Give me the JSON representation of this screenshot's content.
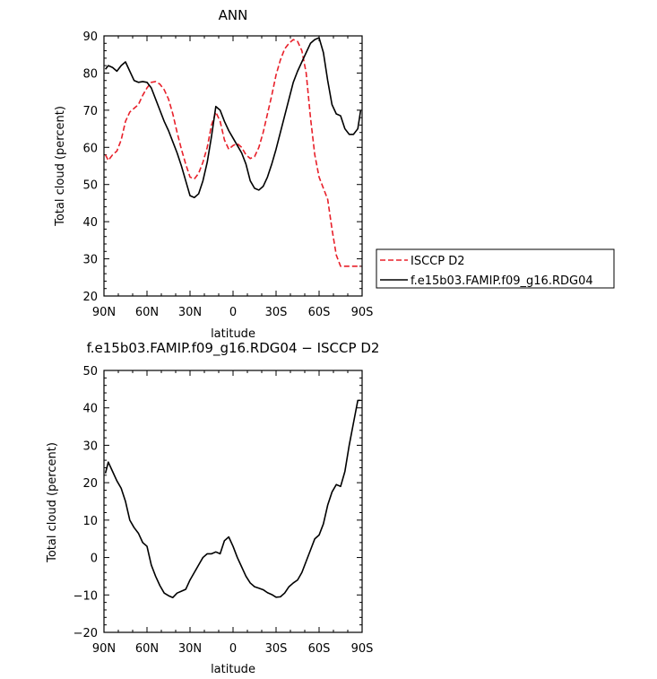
{
  "chart_data": [
    {
      "type": "line",
      "title": "ANN",
      "xlabel": "latitude",
      "ylabel": "Total cloud (percent)",
      "xlim": [
        90,
        -90
      ],
      "ylim": [
        20,
        90
      ],
      "x_tick_values": [
        90,
        60,
        30,
        0,
        -30,
        -60,
        -90
      ],
      "x_tick_labels": [
        "90N",
        "60N",
        "30N",
        "0",
        "30S",
        "60S",
        "90S"
      ],
      "y_tick_values": [
        20,
        30,
        40,
        50,
        60,
        70,
        80,
        90
      ],
      "y_tick_labels": [
        "20",
        "30",
        "40",
        "50",
        "60",
        "70",
        "80",
        "90"
      ],
      "legend_position": "right",
      "series": [
        {
          "name": "ISCCP D2",
          "color": "#e8202a",
          "dash": "dashed",
          "x": [
            89,
            87,
            84,
            81,
            78,
            75,
            72,
            69,
            66,
            63,
            60,
            57,
            54,
            51,
            48,
            45,
            42,
            39,
            36,
            33,
            30,
            27,
            24,
            21,
            18,
            15,
            12,
            9,
            6,
            3,
            0,
            -3,
            -6,
            -9,
            -12,
            -15,
            -18,
            -21,
            -24,
            -27,
            -30,
            -33,
            -36,
            -39,
            -42,
            -45,
            -48,
            -51,
            -54,
            -57,
            -60,
            -63,
            -66,
            -69,
            -72,
            -75,
            -78,
            -81,
            -84,
            -87,
            -89
          ],
          "y": [
            58,
            56.5,
            58,
            59,
            62,
            67,
            69.5,
            70.5,
            71.5,
            74,
            76,
            77.5,
            77.7,
            77,
            75.5,
            73,
            69,
            64,
            59.5,
            55.5,
            52,
            51.5,
            53,
            56,
            60,
            66,
            69.5,
            67,
            62,
            59.5,
            60.5,
            61,
            60,
            58,
            57,
            57.5,
            60,
            64,
            69,
            74,
            79.5,
            83.5,
            86.5,
            88,
            89,
            88.5,
            86,
            80,
            68,
            58,
            52,
            49,
            46,
            38,
            31,
            28,
            28,
            28,
            28,
            28,
            28
          ]
        },
        {
          "name": "f.e15b03.FAMIP.f09_g16.RDG04",
          "color": "#000000",
          "dash": "solid",
          "x": [
            89,
            87,
            84,
            81,
            78,
            75,
            72,
            69,
            66,
            63,
            60,
            57,
            54,
            51,
            48,
            45,
            42,
            39,
            36,
            33,
            30,
            27,
            24,
            21,
            18,
            15,
            12,
            9,
            6,
            3,
            0,
            -3,
            -6,
            -9,
            -12,
            -15,
            -18,
            -21,
            -24,
            -27,
            -30,
            -33,
            -36,
            -39,
            -42,
            -45,
            -48,
            -51,
            -54,
            -57,
            -60,
            -63,
            -66,
            -69,
            -72,
            -75,
            -78,
            -81,
            -84,
            -87,
            -89
          ],
          "y": [
            81,
            82,
            81.5,
            80.5,
            82,
            83,
            80.5,
            78,
            77.5,
            77.7,
            77.5,
            76,
            73,
            70,
            67,
            64.5,
            61.5,
            58.5,
            55,
            51,
            47,
            46.5,
            47.5,
            51,
            56,
            63,
            71,
            70,
            67,
            64.5,
            62.5,
            60.5,
            58.5,
            55.5,
            51,
            49,
            48.5,
            49.5,
            52,
            55.5,
            59.5,
            64,
            68.5,
            73,
            77.5,
            80.5,
            83,
            85.5,
            88,
            89,
            89.5,
            85.5,
            78,
            71.5,
            69,
            68.5,
            65,
            63.5,
            63.5,
            65,
            70
          ]
        }
      ]
    },
    {
      "type": "line",
      "title": "f.e15b03.FAMIP.f09_g16.RDG04 − ISCCP D2",
      "xlabel": "latitude",
      "ylabel": "Total cloud (percent)",
      "xlim": [
        90,
        -90
      ],
      "ylim": [
        -20,
        50
      ],
      "x_tick_values": [
        90,
        60,
        30,
        0,
        -30,
        -60,
        -90
      ],
      "x_tick_labels": [
        "90N",
        "60N",
        "30N",
        "0",
        "30S",
        "60S",
        "90S"
      ],
      "y_tick_values": [
        -20,
        -10,
        0,
        10,
        20,
        30,
        40,
        50
      ],
      "y_tick_labels": [
        "−20",
        "−10",
        "0",
        "10",
        "20",
        "30",
        "40",
        "50"
      ],
      "series": [
        {
          "name": "",
          "color": "#000000",
          "dash": "solid",
          "x": [
            89,
            87,
            84,
            81,
            78,
            75,
            72,
            69,
            66,
            63,
            60,
            57,
            54,
            51,
            48,
            45,
            42,
            39,
            36,
            33,
            30,
            27,
            24,
            21,
            18,
            15,
            12,
            9,
            6,
            3,
            0,
            -3,
            -6,
            -9,
            -12,
            -15,
            -18,
            -21,
            -24,
            -27,
            -30,
            -33,
            -36,
            -39,
            -42,
            -45,
            -48,
            -51,
            -54,
            -57,
            -60,
            -63,
            -66,
            -69,
            -72,
            -75,
            -78,
            -81,
            -84,
            -87,
            -89
          ],
          "y": [
            22.5,
            25.5,
            23,
            20.5,
            18.5,
            15,
            10,
            8,
            6.5,
            4,
            3,
            -2,
            -5,
            -7.5,
            -9.5,
            -10.2,
            -10.7,
            -9.5,
            -9,
            -8.5,
            -6,
            -4,
            -2,
            0,
            1,
            1,
            1.5,
            1,
            4.5,
            5.5,
            3,
            0,
            -2.5,
            -5,
            -6.8,
            -7.8,
            -8.2,
            -8.6,
            -9.4,
            -9.9,
            -10.6,
            -10.5,
            -9.5,
            -7.8,
            -6.8,
            -6,
            -4,
            -1,
            2,
            5,
            6,
            9,
            14,
            17.5,
            19.5,
            19,
            23,
            30,
            36,
            42,
            42
          ]
        }
      ]
    }
  ]
}
